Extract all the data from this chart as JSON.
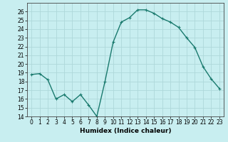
{
  "x": [
    0,
    1,
    2,
    3,
    4,
    5,
    6,
    7,
    8,
    9,
    10,
    11,
    12,
    13,
    14,
    15,
    16,
    17,
    18,
    19,
    20,
    21,
    22,
    23
  ],
  "y": [
    18.8,
    18.9,
    18.2,
    16.0,
    16.5,
    15.7,
    16.5,
    15.3,
    14.0,
    18.0,
    22.5,
    24.8,
    25.3,
    26.2,
    26.2,
    25.8,
    25.2,
    24.8,
    24.2,
    23.0,
    21.9,
    19.7,
    18.3,
    17.2
  ],
  "line_color": "#1a7a6e",
  "marker": "+",
  "marker_size": 3,
  "background_color": "#c8eef0",
  "grid_color": "#aed8da",
  "xlabel": "Humidex (Indice chaleur)",
  "xlim": [
    -0.5,
    23.5
  ],
  "ylim": [
    14,
    27
  ],
  "yticks": [
    14,
    15,
    16,
    17,
    18,
    19,
    20,
    21,
    22,
    23,
    24,
    25,
    26
  ],
  "xticks": [
    0,
    1,
    2,
    3,
    4,
    5,
    6,
    7,
    8,
    9,
    10,
    11,
    12,
    13,
    14,
    15,
    16,
    17,
    18,
    19,
    20,
    21,
    22,
    23
  ],
  "xlabel_fontsize": 6.5,
  "tick_fontsize": 5.5,
  "line_width": 1.0
}
